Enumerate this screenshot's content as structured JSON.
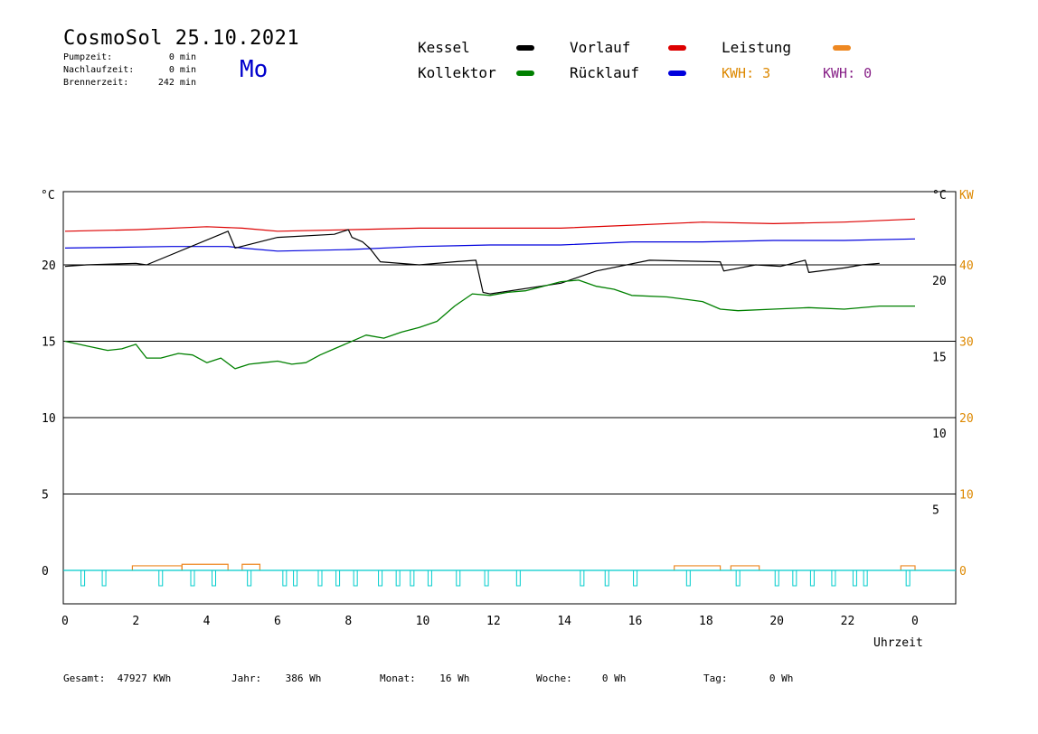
{
  "header": {
    "title": "CosmoSol 25.10.2021",
    "day": "Mo",
    "stats": [
      {
        "label": "Pumpzeit:",
        "value": "0 min"
      },
      {
        "label": "Nachlaufzeit:",
        "value": "0 min"
      },
      {
        "label": "Brennerzeit:",
        "value": "242 min"
      }
    ]
  },
  "legend": {
    "kessel": {
      "label": "Kessel",
      "color": "#000000"
    },
    "kollektor": {
      "label": "Kollektor",
      "color": "#008000"
    },
    "vorlauf": {
      "label": "Vorlauf",
      "color": "#dd0000"
    },
    "ruecklauf": {
      "label": "Rücklauf",
      "color": "#0000dd"
    },
    "leistung": {
      "label": "Leistung",
      "color": "#ee8822"
    },
    "kwh1": "KWH: 3",
    "kwh2": "KWH: 0",
    "kwh1_color": "#dd8800",
    "kwh2_color": "#882288"
  },
  "footer": {
    "gesamt_label": "Gesamt:",
    "gesamt_value": "47927 KWh",
    "jahr_label": "Jahr:",
    "jahr_value": "386 Wh",
    "monat_label": "Monat:",
    "monat_value": "16 Wh",
    "woche_label": "Woche:",
    "woche_value": "0 Wh",
    "tag_label": "Tag:",
    "tag_value": "0 Wh"
  },
  "chart_data": {
    "type": "line",
    "xlabel": "Uhrzeit",
    "x_ticks": [
      "0",
      "2",
      "4",
      "6",
      "8",
      "10",
      "12",
      "14",
      "16",
      "18",
      "20",
      "22",
      "0"
    ],
    "xlim": [
      0,
      25
    ],
    "left_axis": {
      "unit": "°C",
      "ticks": [
        "0",
        "5",
        "10",
        "15",
        "20"
      ]
    },
    "right_axis_temp": {
      "unit": "°C",
      "ticks": [
        "5",
        "10",
        "15",
        "20"
      ]
    },
    "right_axis_kw": {
      "unit": "KW",
      "ticks": [
        "0",
        "10",
        "20",
        "30",
        "40"
      ],
      "color": "#dd8800"
    },
    "ylim": [
      -2,
      25
    ],
    "series": [
      {
        "name": "Vorlauf",
        "color": "#dd0000",
        "points": [
          [
            0,
            22.2
          ],
          [
            2,
            22.3
          ],
          [
            4,
            22.5
          ],
          [
            5,
            22.4
          ],
          [
            6,
            22.2
          ],
          [
            8,
            22.3
          ],
          [
            10,
            22.4
          ],
          [
            12,
            22.4
          ],
          [
            14,
            22.4
          ],
          [
            16,
            22.6
          ],
          [
            18,
            22.8
          ],
          [
            20,
            22.7
          ],
          [
            22,
            22.8
          ],
          [
            24,
            23.0
          ]
        ]
      },
      {
        "name": "Rücklauf",
        "color": "#0000dd",
        "points": [
          [
            0,
            21.1
          ],
          [
            3,
            21.2
          ],
          [
            4.6,
            21.2
          ],
          [
            5,
            21.1
          ],
          [
            6,
            20.9
          ],
          [
            8,
            21.0
          ],
          [
            10,
            21.2
          ],
          [
            12,
            21.3
          ],
          [
            14,
            21.3
          ],
          [
            16,
            21.5
          ],
          [
            18,
            21.5
          ],
          [
            20,
            21.6
          ],
          [
            22,
            21.6
          ],
          [
            24,
            21.7
          ]
        ]
      },
      {
        "name": "Kessel",
        "color": "#000000",
        "points": [
          [
            0,
            19.9
          ],
          [
            0.6,
            20.0
          ],
          [
            2,
            20.1
          ],
          [
            2.3,
            20.0
          ],
          [
            4.6,
            22.2
          ],
          [
            4.8,
            21.1
          ],
          [
            6,
            21.8
          ],
          [
            7.6,
            22.0
          ],
          [
            8,
            22.3
          ],
          [
            8.1,
            21.8
          ],
          [
            8.4,
            21.5
          ],
          [
            8.6,
            21.1
          ],
          [
            8.9,
            20.2
          ],
          [
            10,
            20.0
          ],
          [
            11,
            20.2
          ],
          [
            11.6,
            20.3
          ],
          [
            11.8,
            18.2
          ],
          [
            12,
            18.1
          ],
          [
            14,
            18.8
          ],
          [
            15,
            19.6
          ],
          [
            16.5,
            20.3
          ],
          [
            18.5,
            20.2
          ],
          [
            18.6,
            19.6
          ],
          [
            19.5,
            20.0
          ],
          [
            20.2,
            19.9
          ],
          [
            20.9,
            20.3
          ],
          [
            21,
            19.5
          ],
          [
            22,
            19.8
          ],
          [
            22.5,
            20.0
          ],
          [
            23,
            20.1
          ]
        ]
      },
      {
        "name": "Kollektor",
        "color": "#008000",
        "points": [
          [
            0,
            15.0
          ],
          [
            0.6,
            14.7
          ],
          [
            1.2,
            14.4
          ],
          [
            1.6,
            14.5
          ],
          [
            2,
            14.8
          ],
          [
            2.3,
            13.9
          ],
          [
            2.7,
            13.9
          ],
          [
            3.2,
            14.2
          ],
          [
            3.6,
            14.1
          ],
          [
            4,
            13.6
          ],
          [
            4.4,
            13.9
          ],
          [
            4.8,
            13.2
          ],
          [
            5.2,
            13.5
          ],
          [
            5.6,
            13.6
          ],
          [
            6,
            13.7
          ],
          [
            6.4,
            13.5
          ],
          [
            6.8,
            13.6
          ],
          [
            7.2,
            14.1
          ],
          [
            7.6,
            14.5
          ],
          [
            8,
            14.9
          ],
          [
            8.5,
            15.4
          ],
          [
            9,
            15.2
          ],
          [
            9.5,
            15.6
          ],
          [
            10,
            15.9
          ],
          [
            10.5,
            16.3
          ],
          [
            11,
            17.3
          ],
          [
            11.5,
            18.1
          ],
          [
            12,
            18.0
          ],
          [
            12.5,
            18.2
          ],
          [
            13,
            18.3
          ],
          [
            13.5,
            18.6
          ],
          [
            14,
            18.9
          ],
          [
            14.5,
            19.0
          ],
          [
            15,
            18.6
          ],
          [
            15.5,
            18.4
          ],
          [
            16,
            18.0
          ],
          [
            17,
            17.9
          ],
          [
            18,
            17.6
          ],
          [
            18.5,
            17.1
          ],
          [
            19,
            17.0
          ],
          [
            20,
            17.1
          ],
          [
            21,
            17.2
          ],
          [
            22,
            17.1
          ],
          [
            23,
            17.3
          ],
          [
            24,
            17.3
          ]
        ]
      }
    ],
    "leistung_segments": [
      [
        1.9,
        3.3,
        0.3
      ],
      [
        3.3,
        4.6,
        0.4
      ],
      [
        5.0,
        5.5,
        0.4
      ],
      [
        17.2,
        18.5,
        0.3
      ],
      [
        18.8,
        19.6,
        0.3
      ],
      [
        23.6,
        24,
        0.3
      ]
    ],
    "pump_pulses": [
      0.5,
      1.1,
      2.7,
      3.6,
      4.2,
      5.2,
      6.2,
      6.5,
      7.2,
      7.7,
      8.2,
      8.9,
      9.4,
      9.8,
      10.3,
      11.1,
      11.9,
      12.8,
      14.6,
      15.3,
      16.1,
      17.6,
      19.0,
      20.1,
      20.6,
      21.1,
      21.7,
      22.3,
      22.6,
      23.8
    ]
  }
}
